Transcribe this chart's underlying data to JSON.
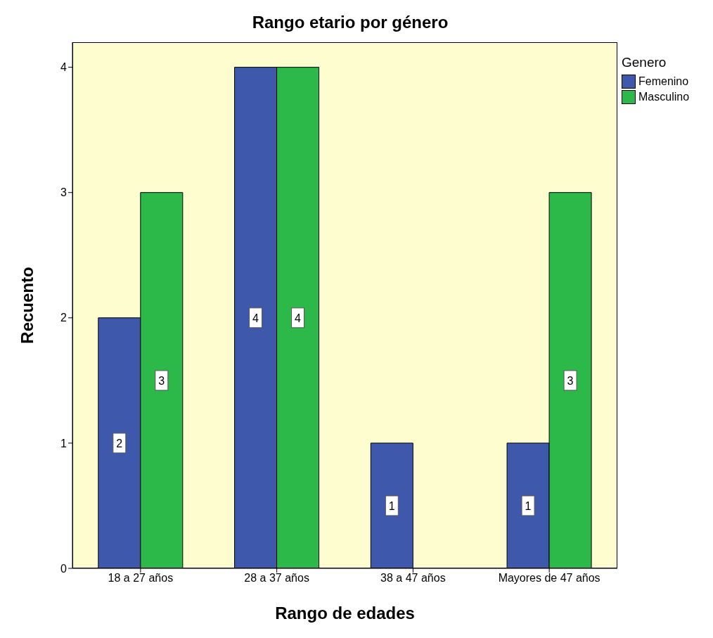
{
  "chart_data": {
    "type": "bar",
    "title": "Rango etario por género",
    "xlabel": "Rango de edades",
    "ylabel": "Recuento",
    "legend_title": "Genero",
    "categories": [
      "18 a 27 años",
      "28 a 37 años",
      "38 a 47 años",
      "Mayores de 47 años"
    ],
    "series": [
      {
        "name": "Femenino",
        "color": "#3e58ac",
        "values": [
          2,
          4,
          1,
          1
        ],
        "value_labels": [
          "2",
          "4",
          "1",
          "1"
        ]
      },
      {
        "name": "Masculino",
        "color": "#2db84a",
        "values": [
          3,
          4,
          0,
          3
        ],
        "value_labels": [
          "3",
          "4",
          null,
          "3"
        ]
      }
    ],
    "ylim": [
      0,
      4.2
    ],
    "yticks": [
      0,
      1,
      2,
      3,
      4
    ],
    "grid": false,
    "legend": "top right"
  }
}
